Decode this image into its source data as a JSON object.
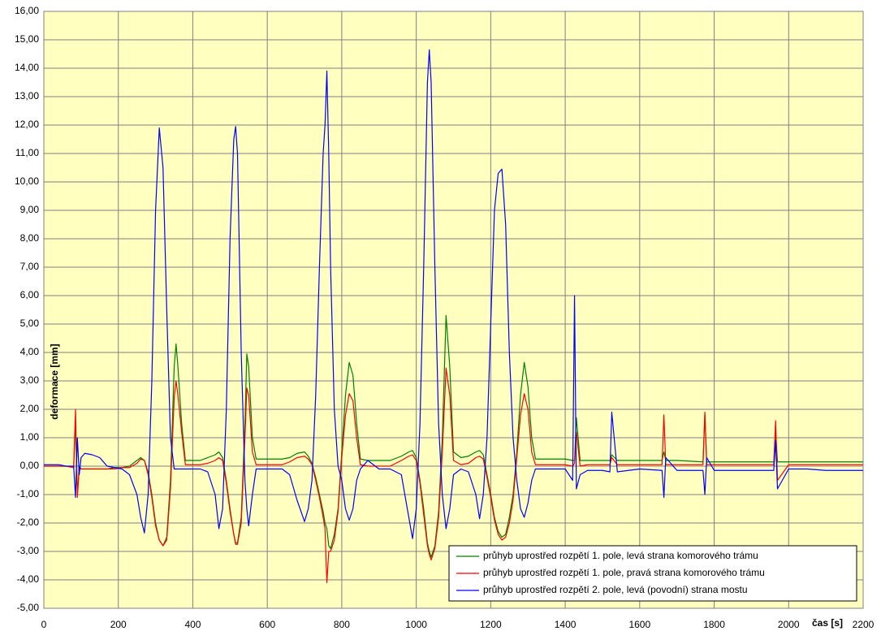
{
  "chart_data": {
    "type": "line",
    "x_label": "čas [s]",
    "y_label": "deformace [mm]",
    "xlim": [
      0,
      2200
    ],
    "xticks": [
      0,
      200,
      400,
      600,
      800,
      1000,
      1200,
      1400,
      1600,
      1800,
      2000,
      2200
    ],
    "ylim": [
      -5,
      16
    ],
    "yticks": [
      {
        "value": -5,
        "label": "-5,00"
      },
      {
        "value": -4,
        "label": "-4,00"
      },
      {
        "value": -3,
        "label": "-3,00"
      },
      {
        "value": -2,
        "label": "-2,00"
      },
      {
        "value": -1,
        "label": "-1,00"
      },
      {
        "value": 0,
        "label": "0,00"
      },
      {
        "value": 1,
        "label": "1,00"
      },
      {
        "value": 2,
        "label": "2,00"
      },
      {
        "value": 3,
        "label": "3,00"
      },
      {
        "value": 4,
        "label": "4,00"
      },
      {
        "value": 5,
        "label": "5,00"
      },
      {
        "value": 6,
        "label": "6,00"
      },
      {
        "value": 7,
        "label": "7,00"
      },
      {
        "value": 8,
        "label": "8,00"
      },
      {
        "value": 9,
        "label": "9,00"
      },
      {
        "value": 10,
        "label": "10,00"
      },
      {
        "value": 11,
        "label": "11,00"
      },
      {
        "value": 12,
        "label": "12,00"
      },
      {
        "value": 13,
        "label": "13,00"
      },
      {
        "value": 14,
        "label": "14,00"
      },
      {
        "value": 15,
        "label": "15,00"
      },
      {
        "value": 16,
        "label": "16,00"
      }
    ],
    "grid": true,
    "legend": "lower-right",
    "x": [
      0,
      20,
      40,
      60,
      80,
      85,
      90,
      95,
      100,
      110,
      130,
      150,
      170,
      190,
      210,
      230,
      250,
      260,
      270,
      280,
      290,
      300,
      310,
      320,
      330,
      340,
      350,
      355,
      360,
      370,
      380,
      400,
      420,
      440,
      460,
      470,
      480,
      490,
      500,
      510,
      515,
      520,
      530,
      540,
      545,
      550,
      560,
      570,
      580,
      600,
      620,
      640,
      660,
      680,
      700,
      710,
      720,
      730,
      740,
      750,
      755,
      760,
      765,
      770,
      780,
      790,
      800,
      810,
      820,
      830,
      840,
      850,
      870,
      900,
      930,
      960,
      980,
      990,
      1000,
      1010,
      1020,
      1030,
      1035,
      1040,
      1050,
      1060,
      1070,
      1080,
      1090,
      1100,
      1120,
      1140,
      1160,
      1170,
      1180,
      1190,
      1200,
      1210,
      1220,
      1230,
      1240,
      1250,
      1260,
      1270,
      1280,
      1290,
      1300,
      1310,
      1320,
      1340,
      1370,
      1400,
      1420,
      1425,
      1430,
      1440,
      1460,
      1500,
      1520,
      1525,
      1540,
      1600,
      1660,
      1665,
      1670,
      1700,
      1770,
      1775,
      1780,
      1800,
      1900,
      1960,
      1965,
      1970,
      2000,
      2050,
      2100,
      2150,
      2200
    ],
    "series": [
      {
        "name": "průhyb uprostřed rozpětí 1. pole, levá strana komorového trámu",
        "color": "#008000",
        "values": [
          0,
          0,
          0,
          0,
          -0.05,
          1.5,
          -1.0,
          0.0,
          -0.1,
          -0.1,
          -0.1,
          -0.1,
          -0.1,
          -0.05,
          -0.05,
          0.0,
          0.2,
          0.3,
          0.2,
          -0.2,
          -1.0,
          -2.0,
          -2.6,
          -2.8,
          -2.5,
          -0.5,
          3.5,
          4.3,
          3.5,
          1.5,
          0.2,
          0.2,
          0.2,
          0.3,
          0.4,
          0.5,
          0.3,
          -0.5,
          -1.5,
          -2.4,
          -2.7,
          -2.7,
          -1.8,
          1.5,
          3.95,
          3.5,
          1.0,
          0.25,
          0.25,
          0.25,
          0.25,
          0.25,
          0.3,
          0.45,
          0.5,
          0.35,
          0.1,
          -0.4,
          -1.0,
          -1.6,
          -2.0,
          -2.2,
          -2.8,
          -2.9,
          -2.4,
          -1.5,
          0.5,
          2.5,
          3.65,
          3.2,
          1.5,
          0.25,
          0.2,
          0.2,
          0.2,
          0.35,
          0.5,
          0.55,
          0.3,
          -0.5,
          -1.5,
          -2.7,
          -3.0,
          -3.2,
          -2.8,
          -1.6,
          1.0,
          5.3,
          3.5,
          0.5,
          0.3,
          0.35,
          0.5,
          0.55,
          0.4,
          -0.3,
          -1.0,
          -1.8,
          -2.3,
          -2.5,
          -2.4,
          -1.8,
          -1.0,
          0.5,
          2.5,
          3.65,
          2.8,
          1.0,
          0.25,
          0.25,
          0.25,
          0.25,
          0.2,
          0.2,
          1.7,
          0.2,
          0.2,
          0.2,
          0.2,
          0.4,
          0.2,
          0.2,
          0.2,
          0.5,
          0.2,
          0.2,
          0.15,
          1.8,
          0.15,
          0.15,
          0.15,
          0.15,
          1.2,
          0.15,
          0.15,
          0.15,
          0.15,
          0.15,
          0.15
        ]
      },
      {
        "name": "průhyb uprostřed rozpětí 1. pole, pravá strana komorového trámu",
        "color": "#ff0000",
        "values": [
          0,
          0,
          0,
          0,
          -0.05,
          2.0,
          -1.1,
          -0.1,
          -0.1,
          -0.1,
          -0.1,
          -0.1,
          -0.1,
          -0.1,
          -0.05,
          -0.05,
          0.1,
          0.25,
          0.2,
          -0.3,
          -1.1,
          -2.1,
          -2.6,
          -2.8,
          -2.6,
          -0.8,
          2.4,
          3.0,
          2.5,
          1.2,
          0.05,
          0.05,
          0.05,
          0.1,
          0.2,
          0.3,
          0.2,
          -0.6,
          -1.6,
          -2.4,
          -2.75,
          -2.75,
          -2.0,
          1.0,
          2.75,
          2.5,
          0.5,
          0.05,
          0.05,
          0.05,
          0.05,
          0.05,
          0.15,
          0.3,
          0.35,
          0.25,
          0.05,
          -0.5,
          -1.1,
          -1.8,
          -2.2,
          -4.1,
          -3.0,
          -3.0,
          -2.6,
          -1.6,
          0.3,
          1.8,
          2.55,
          2.3,
          1.0,
          0.05,
          0.0,
          0.0,
          0.0,
          0.2,
          0.35,
          0.4,
          0.2,
          -0.6,
          -1.7,
          -2.8,
          -3.1,
          -3.3,
          -2.9,
          -1.8,
          0.5,
          3.45,
          2.5,
          0.2,
          0.05,
          0.1,
          0.3,
          0.35,
          0.25,
          -0.4,
          -1.1,
          -1.9,
          -2.4,
          -2.6,
          -2.5,
          -2.0,
          -1.2,
          0.3,
          1.8,
          2.55,
          2.0,
          0.5,
          0.05,
          0.05,
          0.05,
          0.05,
          0.0,
          0.1,
          1.2,
          0.0,
          0.05,
          0.05,
          0.05,
          0.3,
          0.05,
          0.05,
          0.05,
          1.8,
          0.05,
          0.05,
          0.05,
          1.9,
          0.05,
          0.05,
          0.05,
          0.05,
          1.6,
          -0.5,
          0.05,
          0.05,
          0.05,
          0.05,
          0.05
        ]
      },
      {
        "name": "průhyb uprostřed rozpětí 2. pole, levá (povodní) strana mostu",
        "color": "#0000ff",
        "values": [
          0.05,
          0.05,
          0.05,
          0.0,
          0.0,
          -1.1,
          1.0,
          -0.3,
          0.3,
          0.45,
          0.4,
          0.3,
          0.0,
          -0.05,
          -0.1,
          -0.3,
          -1.0,
          -1.8,
          -2.35,
          -1.0,
          3.0,
          9.0,
          11.9,
          10.5,
          5.5,
          1.0,
          -0.1,
          -0.1,
          -0.1,
          -0.1,
          -0.1,
          -0.1,
          -0.1,
          -0.2,
          -1.0,
          -2.2,
          -1.5,
          2.0,
          8.0,
          11.5,
          11.95,
          11.0,
          4.0,
          -0.5,
          -1.5,
          -2.1,
          -1.0,
          -0.1,
          -0.1,
          -0.1,
          -0.1,
          -0.1,
          -0.3,
          -1.2,
          -1.95,
          -1.5,
          -0.5,
          2.5,
          7.0,
          11.0,
          12.0,
          13.9,
          11.0,
          7.0,
          2.0,
          0.0,
          -0.5,
          -1.5,
          -1.9,
          -1.5,
          -0.5,
          -0.1,
          0.2,
          -0.1,
          -0.1,
          -0.3,
          -1.8,
          -2.55,
          -1.5,
          1.5,
          7.0,
          13.5,
          14.65,
          13.5,
          7.0,
          1.5,
          -1.0,
          -2.2,
          -1.5,
          -0.3,
          -0.1,
          -0.2,
          -1.0,
          -1.85,
          -1.0,
          1.0,
          5.0,
          9.0,
          10.3,
          10.45,
          8.5,
          4.0,
          1.0,
          -0.5,
          -1.5,
          -1.8,
          -1.3,
          -0.5,
          -0.1,
          -0.1,
          -0.1,
          -0.1,
          -0.5,
          6.0,
          -0.8,
          -0.3,
          -0.15,
          -0.15,
          -0.2,
          1.9,
          -0.2,
          -0.1,
          -0.15,
          -1.1,
          0.3,
          -0.15,
          -0.15,
          -1.0,
          0.3,
          -0.15,
          -0.15,
          -0.15,
          0.9,
          -0.8,
          -0.1,
          -0.1,
          -0.15,
          -0.15,
          -0.15
        ]
      }
    ]
  }
}
